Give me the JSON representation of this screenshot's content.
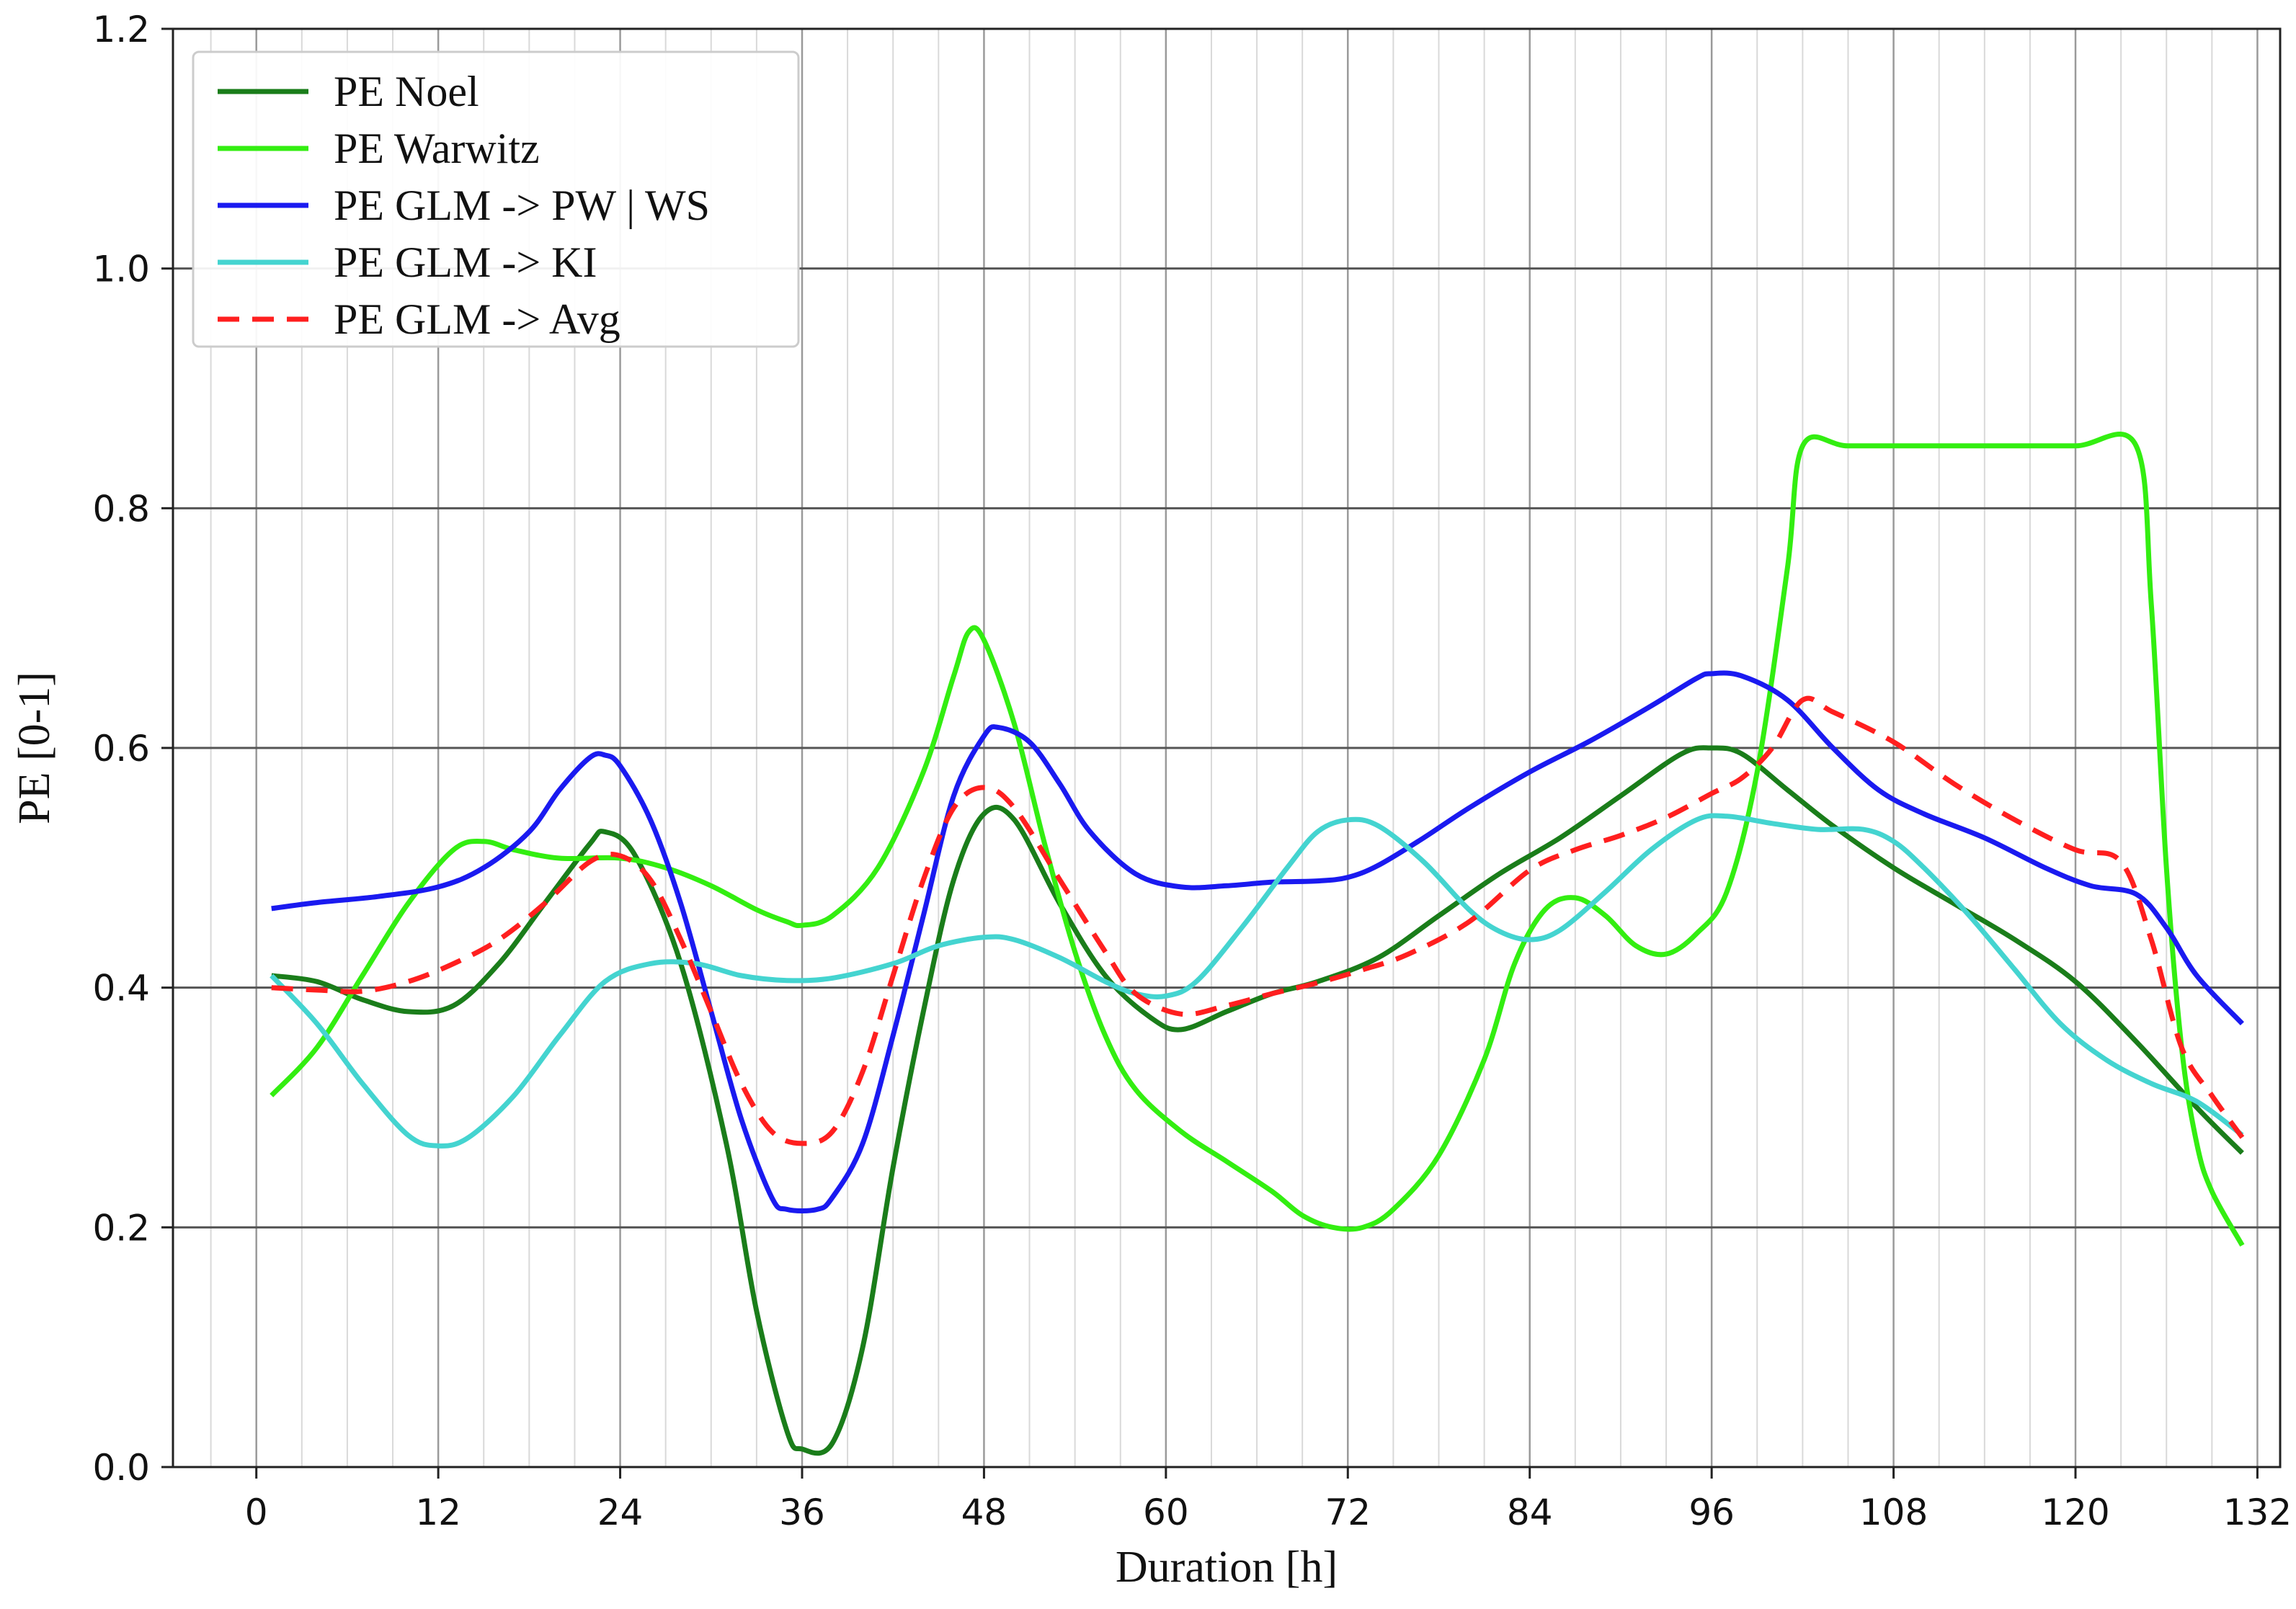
{
  "chart_data": {
    "type": "line",
    "title": "",
    "xlabel": "Duration [h]",
    "ylabel": "PE [0-1]",
    "xlim": [
      -5.5,
      133.5
    ],
    "ylim": [
      0.0,
      1.2
    ],
    "xticks": [
      0,
      12,
      24,
      36,
      48,
      60,
      72,
      84,
      96,
      108,
      120,
      132
    ],
    "xtick_labels": [
      "0",
      "12",
      "24",
      "36",
      "48",
      "60",
      "72",
      "84",
      "96",
      "108",
      "120",
      "132"
    ],
    "yticks": [
      0.0,
      0.2,
      0.4,
      0.6,
      0.8,
      1.0,
      1.2
    ],
    "ytick_labels": [
      "0.0",
      "0.2",
      "0.4",
      "0.6",
      "0.8",
      "1.0",
      "1.2"
    ],
    "minor_x_grid_step": 3,
    "grid": true,
    "legend_position": "top-left",
    "series": [
      {
        "name": "PE Noel",
        "color": "#1a7d1a",
        "dash": "solid",
        "points": [
          [
            1,
            0.41
          ],
          [
            4,
            0.405
          ],
          [
            7,
            0.39
          ],
          [
            10,
            0.38
          ],
          [
            13,
            0.385
          ],
          [
            16,
            0.42
          ],
          [
            19,
            0.47
          ],
          [
            22,
            0.52
          ],
          [
            23,
            0.53
          ],
          [
            25,
            0.51
          ],
          [
            28,
            0.42
          ],
          [
            31,
            0.27
          ],
          [
            33,
            0.13
          ],
          [
            35,
            0.03
          ],
          [
            36,
            0.015
          ],
          [
            38,
            0.02
          ],
          [
            40,
            0.1
          ],
          [
            42,
            0.25
          ],
          [
            44,
            0.38
          ],
          [
            46,
            0.49
          ],
          [
            48,
            0.545
          ],
          [
            50,
            0.54
          ],
          [
            53,
            0.47
          ],
          [
            56,
            0.41
          ],
          [
            59,
            0.375
          ],
          [
            61,
            0.365
          ],
          [
            64,
            0.38
          ],
          [
            67,
            0.395
          ],
          [
            70,
            0.405
          ],
          [
            74,
            0.425
          ],
          [
            78,
            0.46
          ],
          [
            82,
            0.495
          ],
          [
            86,
            0.525
          ],
          [
            90,
            0.56
          ],
          [
            94,
            0.595
          ],
          [
            96,
            0.6
          ],
          [
            98,
            0.595
          ],
          [
            101,
            0.565
          ],
          [
            104,
            0.535
          ],
          [
            108,
            0.5
          ],
          [
            112,
            0.47
          ],
          [
            116,
            0.44
          ],
          [
            120,
            0.405
          ],
          [
            124,
            0.355
          ],
          [
            128,
            0.3
          ],
          [
            131,
            0.262
          ]
        ]
      },
      {
        "name": "PE Warwitz",
        "color": "#33ee11",
        "dash": "solid",
        "points": [
          [
            1,
            0.31
          ],
          [
            4,
            0.35
          ],
          [
            7,
            0.41
          ],
          [
            10,
            0.47
          ],
          [
            13,
            0.515
          ],
          [
            15,
            0.522
          ],
          [
            17,
            0.515
          ],
          [
            20,
            0.508
          ],
          [
            24,
            0.508
          ],
          [
            27,
            0.5
          ],
          [
            30,
            0.485
          ],
          [
            33,
            0.465
          ],
          [
            35,
            0.455
          ],
          [
            36,
            0.452
          ],
          [
            38,
            0.46
          ],
          [
            41,
            0.5
          ],
          [
            44,
            0.58
          ],
          [
            46,
            0.66
          ],
          [
            47,
            0.697
          ],
          [
            48,
            0.69
          ],
          [
            50,
            0.62
          ],
          [
            52,
            0.52
          ],
          [
            54,
            0.43
          ],
          [
            56,
            0.36
          ],
          [
            58,
            0.315
          ],
          [
            61,
            0.28
          ],
          [
            64,
            0.255
          ],
          [
            67,
            0.23
          ],
          [
            69,
            0.21
          ],
          [
            71,
            0.2
          ],
          [
            73,
            0.2
          ],
          [
            75,
            0.215
          ],
          [
            78,
            0.26
          ],
          [
            81,
            0.34
          ],
          [
            83,
            0.42
          ],
          [
            85,
            0.465
          ],
          [
            87,
            0.475
          ],
          [
            89,
            0.46
          ],
          [
            91,
            0.435
          ],
          [
            93,
            0.428
          ],
          [
            95,
            0.445
          ],
          [
            97,
            0.48
          ],
          [
            99,
            0.58
          ],
          [
            101,
            0.75
          ],
          [
            102,
            0.852
          ],
          [
            105,
            0.852
          ],
          [
            110,
            0.852
          ],
          [
            115,
            0.852
          ],
          [
            120,
            0.852
          ],
          [
            124,
            0.852
          ],
          [
            125,
            0.72
          ],
          [
            126,
            0.5
          ],
          [
            127,
            0.35
          ],
          [
            128,
            0.27
          ],
          [
            129,
            0.23
          ],
          [
            131,
            0.185
          ]
        ]
      },
      {
        "name": "PE GLM -> PW | WS",
        "color": "#1a1af0",
        "dash": "solid",
        "points": [
          [
            1,
            0.466
          ],
          [
            4,
            0.471
          ],
          [
            8,
            0.476
          ],
          [
            12,
            0.484
          ],
          [
            15,
            0.5
          ],
          [
            18,
            0.53
          ],
          [
            20,
            0.565
          ],
          [
            22,
            0.592
          ],
          [
            23,
            0.594
          ],
          [
            24,
            0.585
          ],
          [
            26,
            0.54
          ],
          [
            28,
            0.47
          ],
          [
            30,
            0.38
          ],
          [
            32,
            0.29
          ],
          [
            34,
            0.225
          ],
          [
            35,
            0.215
          ],
          [
            37,
            0.215
          ],
          [
            38,
            0.225
          ],
          [
            40,
            0.27
          ],
          [
            42,
            0.36
          ],
          [
            44,
            0.46
          ],
          [
            46,
            0.56
          ],
          [
            48,
            0.61
          ],
          [
            49,
            0.617
          ],
          [
            51,
            0.605
          ],
          [
            53,
            0.57
          ],
          [
            55,
            0.53
          ],
          [
            58,
            0.495
          ],
          [
            61,
            0.484
          ],
          [
            64,
            0.485
          ],
          [
            67,
            0.488
          ],
          [
            70,
            0.489
          ],
          [
            72,
            0.492
          ],
          [
            74,
            0.502
          ],
          [
            77,
            0.525
          ],
          [
            80,
            0.55
          ],
          [
            84,
            0.58
          ],
          [
            88,
            0.606
          ],
          [
            92,
            0.635
          ],
          [
            95,
            0.658
          ],
          [
            96,
            0.662
          ],
          [
            98,
            0.66
          ],
          [
            101,
            0.64
          ],
          [
            104,
            0.6
          ],
          [
            107,
            0.565
          ],
          [
            110,
            0.545
          ],
          [
            114,
            0.525
          ],
          [
            118,
            0.5
          ],
          [
            121,
            0.485
          ],
          [
            124,
            0.478
          ],
          [
            126,
            0.45
          ],
          [
            128,
            0.41
          ],
          [
            131,
            0.37
          ]
        ]
      },
      {
        "name": "PE GLM -> KI",
        "color": "#44d4d0",
        "dash": "solid",
        "points": [
          [
            1,
            0.41
          ],
          [
            4,
            0.37
          ],
          [
            7,
            0.32
          ],
          [
            10,
            0.277
          ],
          [
            12,
            0.268
          ],
          [
            14,
            0.275
          ],
          [
            17,
            0.31
          ],
          [
            20,
            0.36
          ],
          [
            23,
            0.405
          ],
          [
            26,
            0.42
          ],
          [
            29,
            0.42
          ],
          [
            32,
            0.41
          ],
          [
            35,
            0.406
          ],
          [
            38,
            0.408
          ],
          [
            42,
            0.42
          ],
          [
            45,
            0.435
          ],
          [
            48,
            0.442
          ],
          [
            50,
            0.44
          ],
          [
            53,
            0.425
          ],
          [
            56,
            0.405
          ],
          [
            58,
            0.395
          ],
          [
            60,
            0.393
          ],
          [
            62,
            0.405
          ],
          [
            65,
            0.45
          ],
          [
            68,
            0.5
          ],
          [
            70,
            0.53
          ],
          [
            72,
            0.54
          ],
          [
            74,
            0.535
          ],
          [
            77,
            0.505
          ],
          [
            80,
            0.465
          ],
          [
            82,
            0.447
          ],
          [
            84,
            0.44
          ],
          [
            86,
            0.448
          ],
          [
            89,
            0.48
          ],
          [
            92,
            0.515
          ],
          [
            95,
            0.54
          ],
          [
            97,
            0.543
          ],
          [
            100,
            0.537
          ],
          [
            103,
            0.532
          ],
          [
            106,
            0.532
          ],
          [
            108,
            0.522
          ],
          [
            110,
            0.5
          ],
          [
            113,
            0.46
          ],
          [
            116,
            0.415
          ],
          [
            119,
            0.37
          ],
          [
            122,
            0.34
          ],
          [
            125,
            0.32
          ],
          [
            128,
            0.305
          ],
          [
            131,
            0.277
          ]
        ]
      },
      {
        "name": "PE GLM -> Avg",
        "color": "#ff1f1f",
        "dash": "dashed",
        "points": [
          [
            1,
            0.4
          ],
          [
            4,
            0.398
          ],
          [
            7,
            0.397
          ],
          [
            10,
            0.405
          ],
          [
            13,
            0.42
          ],
          [
            16,
            0.44
          ],
          [
            19,
            0.47
          ],
          [
            22,
            0.505
          ],
          [
            24,
            0.51
          ],
          [
            26,
            0.49
          ],
          [
            28,
            0.44
          ],
          [
            30,
            0.38
          ],
          [
            32,
            0.32
          ],
          [
            34,
            0.28
          ],
          [
            36,
            0.27
          ],
          [
            38,
            0.28
          ],
          [
            40,
            0.33
          ],
          [
            42,
            0.41
          ],
          [
            44,
            0.49
          ],
          [
            46,
            0.55
          ],
          [
            48,
            0.567
          ],
          [
            50,
            0.55
          ],
          [
            53,
            0.49
          ],
          [
            56,
            0.43
          ],
          [
            58,
            0.395
          ],
          [
            61,
            0.378
          ],
          [
            64,
            0.385
          ],
          [
            67,
            0.395
          ],
          [
            70,
            0.404
          ],
          [
            73,
            0.415
          ],
          [
            76,
            0.428
          ],
          [
            80,
            0.455
          ],
          [
            84,
            0.498
          ],
          [
            87,
            0.515
          ],
          [
            90,
            0.527
          ],
          [
            93,
            0.542
          ],
          [
            96,
            0.562
          ],
          [
            98,
            0.575
          ],
          [
            100,
            0.6
          ],
          [
            102,
            0.64
          ],
          [
            104,
            0.63
          ],
          [
            108,
            0.605
          ],
          [
            112,
            0.57
          ],
          [
            116,
            0.54
          ],
          [
            120,
            0.515
          ],
          [
            123,
            0.505
          ],
          [
            125,
            0.44
          ],
          [
            127,
            0.35
          ],
          [
            129,
            0.31
          ],
          [
            131,
            0.275
          ]
        ]
      }
    ]
  }
}
